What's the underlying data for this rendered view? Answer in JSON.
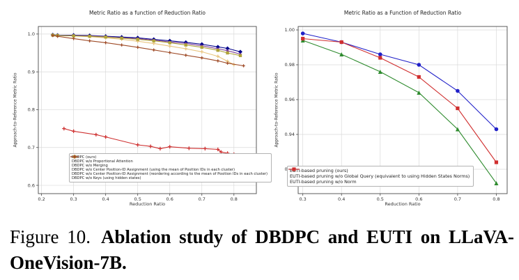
{
  "figure": {
    "caption_prefix": "Figure 10.",
    "caption_text": "Ablation study of DBDPC and EUTI on LLaVA-OneVision-7B."
  },
  "chart_data": [
    {
      "type": "line",
      "title": "Metric Ratio as a function of Reduction Ratio",
      "xlabel": "Reduction Ratio",
      "ylabel": "Approach-to-Reference Metric Ratio",
      "xlim": [
        0.19,
        0.87
      ],
      "ylim": [
        0.578,
        1.02
      ],
      "grid": true,
      "legend_position": "lower right inside",
      "xticks": {
        "values": [
          0.2,
          0.3,
          0.4,
          0.5,
          0.6,
          0.7,
          0.8
        ],
        "labels": [
          "0.2",
          "0.3",
          "0.4",
          "0.5",
          "0.6",
          "0.7",
          "0.8"
        ]
      },
      "yticks": {
        "values": [
          1.0,
          0.9,
          0.8,
          0.7,
          0.6
        ],
        "labels": [
          "1.0",
          "0.9",
          "0.8",
          "0.7",
          "0.6"
        ]
      },
      "series": [
        {
          "name": "DBDPC (ours)",
          "color": "#00008B",
          "marker": "diamond",
          "marker_size": 3.0,
          "x": [
            0.235,
            0.25,
            0.3,
            0.35,
            0.4,
            0.45,
            0.5,
            0.55,
            0.6,
            0.65,
            0.7,
            0.75,
            0.78,
            0.82
          ],
          "y": [
            0.998,
            0.997,
            0.997,
            0.996,
            0.994,
            0.992,
            0.99,
            0.986,
            0.982,
            0.978,
            0.973,
            0.966,
            0.962,
            0.953
          ]
        },
        {
          "name": "DBDPC w/o Proportional Attention",
          "color": "#7D3C98",
          "marker": "diamond",
          "marker_size": 2.0,
          "x": [
            0.235,
            0.25,
            0.3,
            0.35,
            0.4,
            0.45,
            0.5,
            0.55,
            0.6,
            0.65,
            0.7,
            0.75,
            0.78,
            0.82
          ],
          "y": [
            0.997,
            0.996,
            0.996,
            0.995,
            0.993,
            0.99,
            0.988,
            0.984,
            0.979,
            0.975,
            0.969,
            0.961,
            0.956,
            0.947
          ]
        },
        {
          "name": "DBDPC w/o Merging",
          "color": "#E8C47E",
          "marker": "plus",
          "marker_size": 2.4,
          "x": [
            0.235,
            0.25,
            0.3,
            0.35,
            0.4,
            0.45,
            0.5,
            0.55,
            0.6,
            0.65,
            0.7,
            0.75,
            0.78,
            0.8
          ],
          "y": [
            0.997,
            0.996,
            0.995,
            0.993,
            0.99,
            0.986,
            0.981,
            0.975,
            0.968,
            0.961,
            0.953,
            0.941,
            0.928,
            0.919
          ]
        },
        {
          "name": "DBDPC w/o Center Position-ID Assignment (using the mean of Position IDs in each cluster)",
          "color": "#AFA33A",
          "marker": "square",
          "marker_size": 2.2,
          "x": [
            0.235,
            0.25,
            0.3,
            0.35,
            0.4,
            0.45,
            0.5,
            0.55,
            0.6,
            0.65,
            0.7,
            0.75,
            0.78,
            0.82
          ],
          "y": [
            0.997,
            0.996,
            0.995,
            0.994,
            0.992,
            0.989,
            0.986,
            0.982,
            0.977,
            0.971,
            0.965,
            0.957,
            0.95,
            0.943
          ]
        },
        {
          "name": "DBDPC w/o Center Position-ID Assignment (reordering according to the mean of Position IDs in each cluster)",
          "color": "#CE2F2F",
          "marker": "plus",
          "marker_size": 2.6,
          "x": [
            0.27,
            0.3,
            0.37,
            0.4,
            0.5,
            0.54,
            0.57,
            0.6,
            0.66,
            0.71,
            0.75,
            0.76,
            0.78,
            0.8
          ],
          "y": [
            0.75,
            0.743,
            0.734,
            0.728,
            0.707,
            0.703,
            0.697,
            0.702,
            0.698,
            0.697,
            0.695,
            0.688,
            0.685,
            0.682
          ]
        },
        {
          "name": "DBDPC w/o Keys (using hidden states)",
          "color": "#9E4A26",
          "marker": "plus",
          "marker_size": 2.2,
          "x": [
            0.235,
            0.25,
            0.3,
            0.35,
            0.4,
            0.45,
            0.5,
            0.55,
            0.6,
            0.65,
            0.7,
            0.75,
            0.78,
            0.83
          ],
          "y": [
            0.996,
            0.994,
            0.988,
            0.982,
            0.977,
            0.971,
            0.965,
            0.958,
            0.951,
            0.944,
            0.937,
            0.929,
            0.923,
            0.916
          ]
        }
      ]
    },
    {
      "type": "line",
      "title": "Metric Ratio as a Function of Reduction Ratio",
      "xlabel": "Reduction Ratio",
      "ylabel": "Approach-to-Reference Metric Ratio",
      "xlim": [
        0.288,
        0.828
      ],
      "ylim": [
        0.906,
        1.002
      ],
      "grid": true,
      "legend_position": "lower left inside",
      "xticks": {
        "values": [
          0.3,
          0.4,
          0.5,
          0.6,
          0.7,
          0.8
        ],
        "labels": [
          "0.3",
          "0.4",
          "0.5",
          "0.6",
          "0.7",
          "0.8"
        ]
      },
      "yticks": {
        "values": [
          1.0,
          0.98,
          0.96,
          0.94,
          0.92
        ],
        "labels": [
          "1.00",
          "0.98",
          "0.96",
          "0.94",
          "0.92"
        ]
      },
      "series": [
        {
          "name": "EUTI-based pruning (ours)",
          "color": "#2020C8",
          "marker": "circle",
          "marker_size": 2.8,
          "x": [
            0.3,
            0.4,
            0.5,
            0.6,
            0.7,
            0.8
          ],
          "y": [
            0.998,
            0.993,
            0.986,
            0.98,
            0.965,
            0.943
          ]
        },
        {
          "name": "EUTI-based pruning w/o Global Query (equivalent to using Hidden States Norms)",
          "color": "#2E8B2E",
          "marker": "triangle",
          "marker_size": 3.0,
          "x": [
            0.3,
            0.4,
            0.5,
            0.6,
            0.7,
            0.8
          ],
          "y": [
            0.994,
            0.986,
            0.976,
            0.964,
            0.943,
            0.912
          ]
        },
        {
          "name": "EUTI-based pruning w/o Norm",
          "color": "#D02F2F",
          "marker": "square",
          "marker_size": 2.6,
          "x": [
            0.3,
            0.4,
            0.5,
            0.6,
            0.7,
            0.8
          ],
          "y": [
            0.995,
            0.993,
            0.984,
            0.973,
            0.955,
            0.924
          ]
        }
      ]
    }
  ]
}
